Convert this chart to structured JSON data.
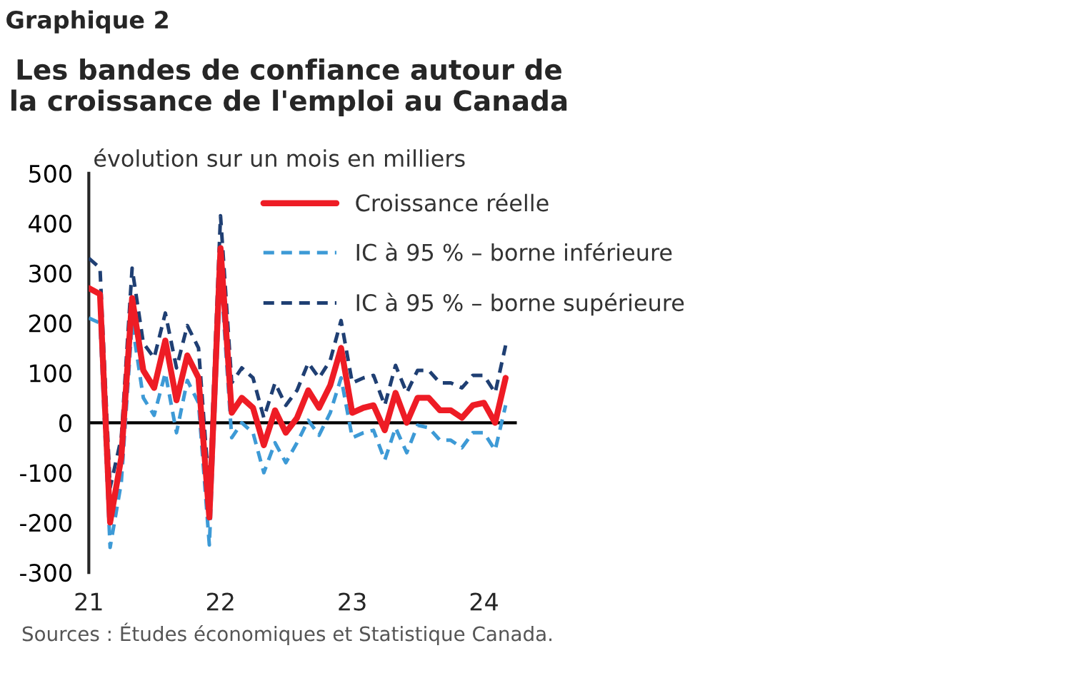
{
  "chart_data": {
    "type": "line",
    "title": "Les bandes de confiance autour de la croissance de l'emploi au Canada",
    "subtitle": "Graphique 2",
    "ylabel": "évolution sur un mois en milliers",
    "annotations": [
      "Sources : Études économiques et Statistique Canada."
    ],
    "x": [
      "2021-01",
      "2021-02",
      "2021-03",
      "2021-04",
      "2021-05",
      "2021-06",
      "2021-07",
      "2021-08",
      "2021-09",
      "2021-10",
      "2021-11",
      "2021-12",
      "2022-01",
      "2022-02",
      "2022-03",
      "2022-04",
      "2022-05",
      "2022-06",
      "2022-07",
      "2022-08",
      "2022-09",
      "2022-10",
      "2022-11",
      "2022-12",
      "2023-01",
      "2023-02",
      "2023-03",
      "2023-04",
      "2023-05",
      "2023-06",
      "2023-07",
      "2023-08",
      "2023-09",
      "2023-10",
      "2023-11",
      "2023-12",
      "2024-01",
      "2024-02",
      "2024-03"
    ],
    "series": [
      {
        "name": "Croissance réelle",
        "color": "#ee1c25",
        "line_style": "solid",
        "values": [
          270,
          258,
          -200,
          -70,
          250,
          105,
          70,
          165,
          45,
          135,
          90,
          -190,
          350,
          20,
          50,
          30,
          -45,
          25,
          -20,
          10,
          65,
          30,
          75,
          150,
          20,
          30,
          35,
          -15,
          60,
          0,
          50,
          50,
          25,
          25,
          10,
          35,
          40,
          0,
          90
        ]
      },
      {
        "name": "IC à 95 % – borne inférieure",
        "color": "#3d9ad6",
        "line_style": "dashed",
        "values": [
          210,
          200,
          -250,
          -120,
          200,
          50,
          15,
          100,
          -20,
          85,
          40,
          -245,
          300,
          -30,
          0,
          -20,
          -100,
          -40,
          -80,
          -40,
          5,
          -25,
          20,
          90,
          -30,
          -20,
          -15,
          -75,
          -10,
          -60,
          -5,
          -10,
          -35,
          -35,
          -50,
          -20,
          -20,
          -55,
          35
        ]
      },
      {
        "name": "IC à 95 % – borne supérieure",
        "color": "#1f3f73",
        "line_style": "dashed",
        "values": [
          330,
          310,
          -130,
          -30,
          310,
          160,
          130,
          220,
          110,
          195,
          150,
          -140,
          415,
          80,
          110,
          90,
          10,
          80,
          35,
          65,
          120,
          90,
          125,
          205,
          80,
          90,
          95,
          35,
          115,
          60,
          105,
          105,
          80,
          80,
          70,
          95,
          95,
          60,
          155
        ]
      }
    ],
    "xlim": [
      "2021-01",
      "2024-04"
    ],
    "xticks": [
      {
        "value": "2021-01",
        "label": "21"
      },
      {
        "value": "2022-01",
        "label": "22"
      },
      {
        "value": "2023-01",
        "label": "23"
      },
      {
        "value": "2024-01",
        "label": "24"
      }
    ],
    "ylim": [
      -300,
      500
    ],
    "yticks": [
      -300,
      -200,
      -100,
      0,
      100,
      200,
      300,
      400,
      500
    ],
    "ref_lines": [
      {
        "axis": "y",
        "value": 0,
        "color": "#000000"
      }
    ],
    "grid": false,
    "legend": "top right"
  }
}
